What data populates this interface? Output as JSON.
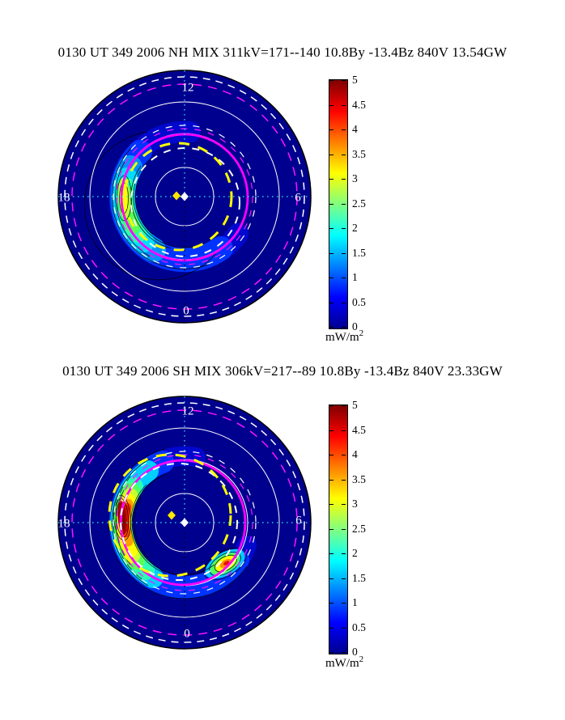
{
  "chart_data": [
    {
      "type": "heatmap",
      "projection": "polar-mlt",
      "hemisphere": "NH",
      "title": "0130 UT 349 2006 NH MIX 311kV=171--140 10.8By -13.4Bz 840V 13.54GW",
      "time_ut": "0130 UT",
      "day_of_year": "349",
      "year": "2006",
      "model": "MIX",
      "potential": "311kV=171--140",
      "imf_by": "10.8By",
      "imf_bz": "-13.4Bz",
      "solar_wind": "840V",
      "hemispheric_power": "13.54GW",
      "mlt_labels": [
        "12",
        "18",
        "6",
        "0"
      ],
      "grid": "white solid latitude circles; white and magenta dashed outer circles; magenta solid, white dashed and yellow dashed boundary ovals; dotted noon-midnight and dawn-dusk meridians; yellow and white diamond markers near pole",
      "colorbar": {
        "min": 0,
        "max": 5,
        "ticks": [
          0,
          0.5,
          1,
          1.5,
          2,
          2.5,
          3,
          3.5,
          4,
          4.5,
          5
        ],
        "unit_base": "mW/m",
        "unit_sup": "2",
        "label": "mW/m2",
        "colormap": "jet",
        "position": "right"
      },
      "features": [
        {
          "name": "auroral oval energy flux band",
          "mlt_extent": "from ~12 MLT counterclockwise through 18 and 0 to ~04 MLT",
          "radial_position": "~0.5 of plot radius"
        },
        {
          "name": "dusk-side maximum",
          "mlt": "17-19",
          "peak_value_mW_m2": 3.2,
          "peak_color": "yellow-green"
        }
      ]
    },
    {
      "type": "heatmap",
      "projection": "polar-mlt",
      "hemisphere": "SH",
      "title": "0130 UT 349 2006 SH MIX 306kV=217--89 10.8By -13.4Bz 840V 23.33GW",
      "time_ut": "0130 UT",
      "day_of_year": "349",
      "year": "2006",
      "model": "MIX",
      "potential": "306kV=217--89",
      "imf_by": "10.8By",
      "imf_bz": "-13.4Bz",
      "solar_wind": "840V",
      "hemispheric_power": "23.33GW",
      "mlt_labels": [
        "12",
        "18",
        "6",
        "0"
      ],
      "grid": "white solid latitude circles; white and magenta dashed outer circles; magenta solid, white dashed and yellow dashed boundary ovals; dotted noon-midnight and dawn-dusk meridians; yellow and white diamond markers near pole",
      "colorbar": {
        "min": 0,
        "max": 5,
        "ticks": [
          0,
          0.5,
          1,
          1.5,
          2,
          2.5,
          3,
          3.5,
          4,
          4.5,
          5
        ],
        "unit_base": "mW/m",
        "unit_sup": "2",
        "label": "mW/m2",
        "colormap": "jet",
        "position": "right"
      },
      "features": [
        {
          "name": "auroral oval energy flux band",
          "mlt_extent": "from ~12:40 MLT counterclockwise through 18 and 0 to ~05 MLT",
          "radial_position": "~0.5 of plot radius"
        },
        {
          "name": "dusk-side maximum",
          "mlt": "18-19",
          "peak_value_mW_m2": 5,
          "peak_color": "dark red"
        },
        {
          "name": "post-midnight secondary maximum",
          "mlt": "3-4",
          "peak_value_mW_m2": 3.5,
          "peak_color": "orange-red"
        }
      ]
    }
  ]
}
